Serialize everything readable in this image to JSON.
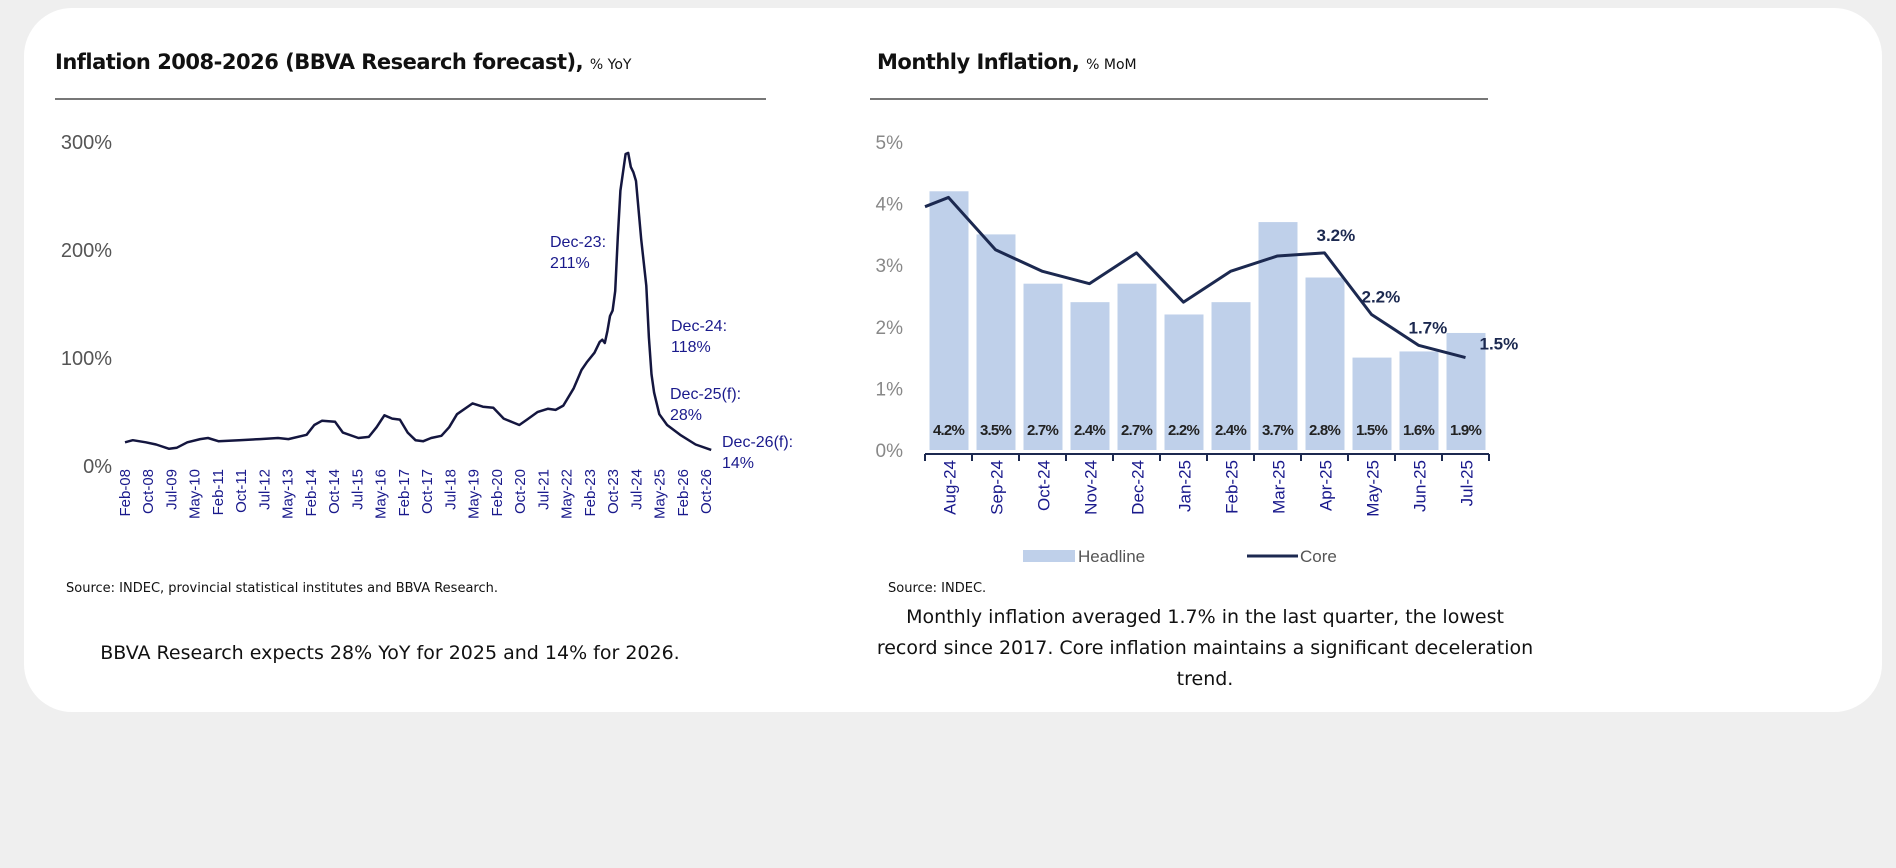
{
  "left": {
    "title": "Inflation 2008-2026 (BBVA Research forecast),",
    "unit": "% YoY",
    "source": "Source: INDEC, provincial statistical institutes and BBVA Research.",
    "caption": "BBVA Research expects 28% YoY for 2025 and 14% for 2026."
  },
  "right": {
    "title": "Monthly Inflation,",
    "unit": "% MoM",
    "source": "Source: INDEC.",
    "caption_lines": [
      "Monthly inflation averaged 1.7% in the last quarter, the lowest",
      "record since 2017. Core inflation maintains a significant deceleration",
      "trend."
    ]
  },
  "chart_data": [
    {
      "type": "line",
      "ylim": [
        0,
        300
      ],
      "yticks": [
        "0%",
        "100%",
        "200%",
        "300%"
      ],
      "ytick_values": [
        0,
        100,
        200,
        300
      ],
      "xticks": [
        "Feb-08",
        "Oct-08",
        "Jul-09",
        "May-10",
        "Feb-11",
        "Oct-11",
        "Jul-12",
        "May-13",
        "Feb-14",
        "Oct-14",
        "Jul-15",
        "May-16",
        "Feb-17",
        "Oct-17",
        "Jul-18",
        "May-19",
        "Feb-20",
        "Oct-20",
        "Jul-21",
        "May-22",
        "Feb-23",
        "Oct-23",
        "Jul-24",
        "May-25",
        "Feb-26",
        "Oct-26"
      ],
      "line_color": "#14163f",
      "label_color": "#1a1a8c",
      "series": [
        {
          "points": [
            [
              "2008-02",
              21
            ],
            [
              "2008-05",
              23
            ],
            [
              "2008-10",
              21
            ],
            [
              "2009-02",
              19
            ],
            [
              "2009-07",
              15
            ],
            [
              "2009-10",
              16
            ],
            [
              "2010-02",
              21
            ],
            [
              "2010-07",
              24
            ],
            [
              "2010-10",
              25
            ],
            [
              "2011-02",
              22
            ],
            [
              "2011-10",
              23
            ],
            [
              "2012-06",
              24
            ],
            [
              "2013-01",
              25
            ],
            [
              "2013-05",
              24
            ],
            [
              "2013-12",
              28
            ],
            [
              "2014-03",
              37
            ],
            [
              "2014-06",
              41
            ],
            [
              "2014-11",
              40
            ],
            [
              "2015-02",
              30
            ],
            [
              "2015-08",
              25
            ],
            [
              "2015-12",
              26
            ],
            [
              "2016-03",
              35
            ],
            [
              "2016-06",
              46
            ],
            [
              "2016-09",
              43
            ],
            [
              "2016-12",
              42
            ],
            [
              "2017-03",
              30
            ],
            [
              "2017-06",
              23
            ],
            [
              "2017-09",
              22
            ],
            [
              "2017-12",
              25
            ],
            [
              "2018-04",
              27
            ],
            [
              "2018-07",
              35
            ],
            [
              "2018-10",
              47
            ],
            [
              "2019-04",
              57
            ],
            [
              "2019-08",
              54
            ],
            [
              "2019-12",
              53
            ],
            [
              "2020-04",
              43
            ],
            [
              "2020-08",
              39
            ],
            [
              "2020-10",
              37
            ],
            [
              "2021-01",
              42
            ],
            [
              "2021-05",
              49
            ],
            [
              "2021-09",
              52
            ],
            [
              "2021-12",
              51
            ],
            [
              "2022-03",
              55
            ],
            [
              "2022-07",
              71
            ],
            [
              "2022-10",
              88
            ],
            [
              "2022-12",
              95
            ],
            [
              "2023-03",
              104
            ],
            [
              "2023-05",
              114
            ],
            [
              "2023-06",
              116
            ],
            [
              "2023-07",
              113
            ],
            [
              "2023-08",
              124
            ],
            [
              "2023-09",
              138
            ],
            [
              "2023-10",
              143
            ],
            [
              "2023-11",
              161
            ],
            [
              "2023-12",
              211
            ],
            [
              "2024-01",
              254
            ],
            [
              "2024-03",
              288
            ],
            [
              "2024-04",
              289
            ],
            [
              "2024-05",
              276
            ],
            [
              "2024-06",
              271
            ],
            [
              "2024-07",
              263
            ],
            [
              "2024-09",
              209
            ],
            [
              "2024-11",
              166
            ],
            [
              "2024-12",
              118
            ],
            [
              "2025-01",
              84
            ],
            [
              "2025-02",
              67
            ],
            [
              "2025-04",
              47
            ],
            [
              "2025-07",
              37
            ],
            [
              "2025-12",
              28
            ],
            [
              "2026-06",
              19
            ],
            [
              "2026-12",
              14
            ]
          ]
        }
      ],
      "annotations": [
        {
          "lines": [
            "Dec-23:",
            "211%"
          ]
        },
        {
          "lines": [
            "Dec-24:",
            "118%"
          ]
        },
        {
          "lines": [
            "Dec-25(f):",
            "28%"
          ]
        },
        {
          "lines": [
            "Dec-26(f):",
            "14%"
          ]
        }
      ]
    },
    {
      "type": "bar",
      "ylim": [
        0,
        5
      ],
      "yticks": [
        "0%",
        "1%",
        "2%",
        "3%",
        "4%",
        "5%"
      ],
      "ytick_values": [
        0,
        1,
        2,
        3,
        4,
        5
      ],
      "categories": [
        "Aug-24",
        "Sep-24",
        "Oct-24",
        "Nov-24",
        "Dec-24",
        "Jan-25",
        "Feb-25",
        "Mar-25",
        "Apr-25",
        "May-25",
        "Jun-25",
        "Jul-25"
      ],
      "series": [
        {
          "name": "Headline",
          "type": "bar",
          "color": "#bfd0ea",
          "values": [
            4.2,
            3.5,
            2.7,
            2.4,
            2.7,
            2.2,
            2.4,
            3.7,
            2.8,
            1.5,
            1.6,
            1.9
          ],
          "labels": [
            "4.2%",
            "3.5%",
            "2.7%",
            "2.4%",
            "2.7%",
            "2.2%",
            "2.4%",
            "3.7%",
            "2.8%",
            "1.5%",
            "1.6%",
            "1.9%"
          ]
        },
        {
          "name": "Core",
          "type": "line",
          "color": "#1c2950",
          "start_value": 3.95,
          "values": [
            4.1,
            3.25,
            2.9,
            2.7,
            3.2,
            2.4,
            2.9,
            3.15,
            3.2,
            2.2,
            1.7,
            1.5
          ],
          "point_labels": {
            "8": "3.2%",
            "9": "2.2%",
            "10": "1.7%",
            "11": "1.5%"
          }
        }
      ],
      "legend": "bottom",
      "axis_label_color": "#1a1a8c",
      "tick_label_color": "#888888"
    }
  ]
}
